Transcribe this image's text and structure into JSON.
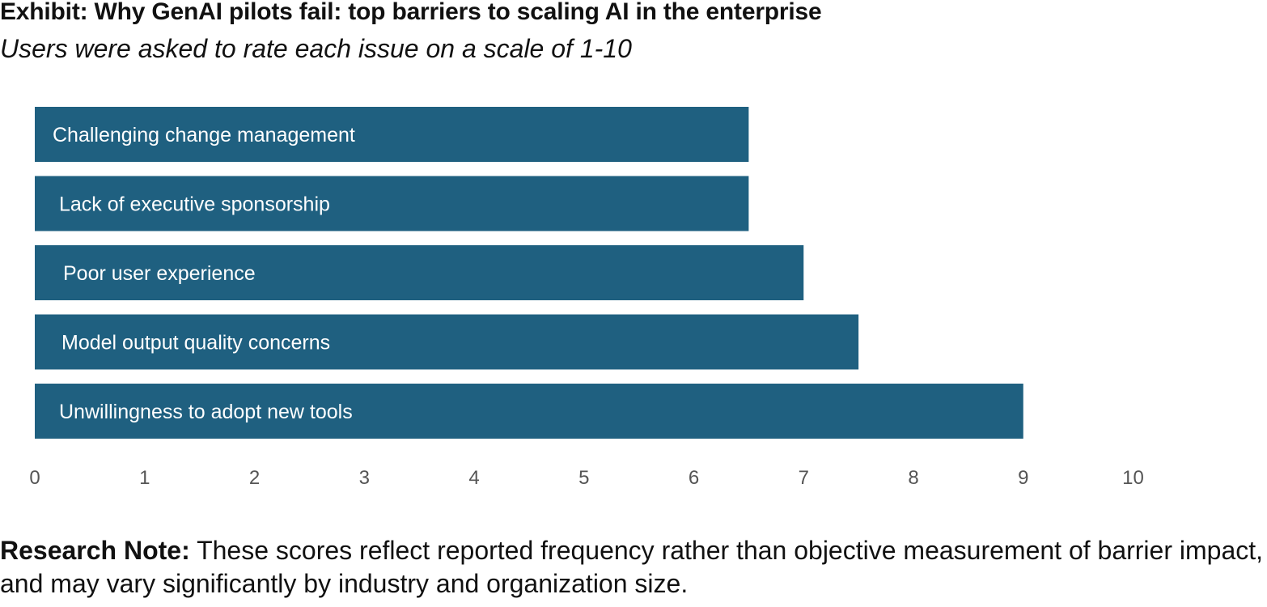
{
  "header": {
    "title": "Exhibit: Why GenAI pilots fail: top barriers to scaling AI in the enterprise",
    "subtitle": "Users were asked to rate each issue on a scale of 1-10"
  },
  "chart_data": {
    "type": "bar",
    "orientation": "horizontal",
    "categories": [
      "Challenging change management",
      "Lack of executive sponsorship",
      "Poor user experience",
      "Model output quality concerns",
      "Unwillingness to adopt new tools"
    ],
    "values": [
      6.5,
      6.5,
      7.0,
      7.5,
      9.0
    ],
    "xlim": [
      0,
      10
    ],
    "xticks": [
      "0",
      "1",
      "2",
      "3",
      "4",
      "5",
      "6",
      "7",
      "8",
      "9",
      "10"
    ],
    "bar_color": "#1f6080",
    "grid": false,
    "legend": "none"
  },
  "note": {
    "heading": "Research Note:",
    "text": " These scores reflect reported frequency rather than objective measurement of barrier impact, and may vary significantly by industry and organization size."
  }
}
